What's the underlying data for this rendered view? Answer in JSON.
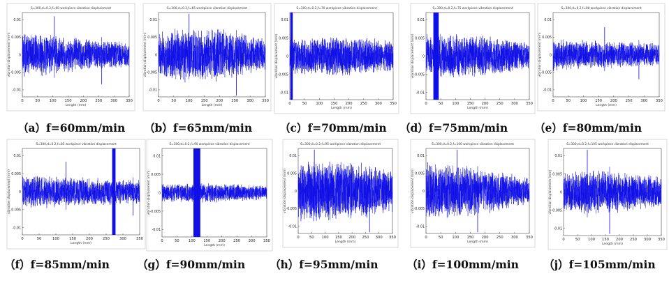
{
  "colors": {
    "signal": "#1010e6",
    "axis": "#4a4a4a",
    "frame": "#bdbdbd",
    "text": "#111111"
  },
  "chart_data": [
    {
      "type": "line",
      "title": "S=300,d=0.2,f=60 workpiece vibration displacement",
      "caption": "（a）f=60mm/min",
      "xlabel": "Length (mm)",
      "ylabel": "vibration displacement (mm)",
      "xlim": [
        0,
        350
      ],
      "ylim": [
        -0.012,
        0.012
      ],
      "x_ticks": [
        "0",
        "50",
        "100",
        "150",
        "200",
        "250",
        "300",
        "350"
      ],
      "y_ticks": [
        "0.01",
        "0.005",
        "0",
        "-0.005",
        "-0.01"
      ],
      "series": [
        {
          "envelope_x": [
            0,
            50,
            100,
            150,
            200,
            250,
            300,
            350
          ],
          "envelope_amplitude": [
            0.0068,
            0.0064,
            0.0058,
            0.0054,
            0.0049,
            0.0045,
            0.0041,
            0.0038
          ],
          "spike_x": [
            105,
            260
          ]
        }
      ]
    },
    {
      "type": "line",
      "title": "S=300,d=0.2,f=65 workpiece vibration displacement",
      "caption": "（b）f=65mm/min",
      "xlabel": "Length (mm)",
      "ylabel": "vibration displacement (mm)",
      "xlim": [
        0,
        350
      ],
      "ylim": [
        -0.012,
        0.012
      ],
      "x_ticks": [
        "0",
        "50",
        "100",
        "150",
        "200",
        "250",
        "300",
        "350"
      ],
      "y_ticks": [
        "0.01",
        "0.005",
        "0",
        "-0.005",
        "-0.01"
      ],
      "series": [
        {
          "envelope_x": [
            0,
            50,
            100,
            150,
            200,
            250,
            300,
            350
          ],
          "envelope_amplitude": [
            0.0066,
            0.0075,
            0.0082,
            0.0085,
            0.0078,
            0.0068,
            0.0058,
            0.0048
          ],
          "spike_x": [
            100,
            255
          ]
        }
      ]
    },
    {
      "type": "line",
      "title": "S=300,d=0.2,f=70 workpiece vibration displacement",
      "caption": "（c）f=70mm/min",
      "xlabel": "Length (mm)",
      "ylabel": "vibration displacement (mm)",
      "xlim": [
        0,
        350
      ],
      "ylim": [
        -0.012,
        0.012
      ],
      "x_ticks": [
        "0",
        "50",
        "100",
        "150",
        "200",
        "250",
        "300",
        "350"
      ],
      "y_ticks": [
        "0.01",
        "0.005",
        "0",
        "-0.005",
        "-0.01"
      ],
      "series": [
        {
          "envelope_x": [
            0,
            50,
            100,
            150,
            200,
            250,
            300,
            350
          ],
          "envelope_amplitude": [
            0.0052,
            0.0052,
            0.0055,
            0.0057,
            0.0057,
            0.0052,
            0.0048,
            0.0045
          ],
          "saturated_band": [
            2,
            10
          ],
          "spike_x": []
        }
      ]
    },
    {
      "type": "line",
      "title": "S=300,d=0.2,f=75 workpiece vibration displacement",
      "caption": "（d）f=75mm/min",
      "xlabel": "Length (mm)",
      "ylabel": "vibration displacement (mm)",
      "xlim": [
        0,
        350
      ],
      "ylim": [
        -0.012,
        0.012
      ],
      "x_ticks": [
        "0",
        "50",
        "100",
        "150",
        "200",
        "250",
        "300",
        "350"
      ],
      "y_ticks": [
        "0.01",
        "0.005",
        "0",
        "-0.005",
        "-0.01"
      ],
      "series": [
        {
          "envelope_x": [
            0,
            50,
            100,
            150,
            200,
            250,
            300,
            350
          ],
          "envelope_amplitude": [
            0.0062,
            0.0064,
            0.0062,
            0.006,
            0.0058,
            0.0052,
            0.0046,
            0.004
          ],
          "saturated_band": [
            25,
            43
          ],
          "spike_x": []
        }
      ]
    },
    {
      "type": "line",
      "title": "S=300,d=0.2,f=80 workpiece vibration displacement",
      "caption": "（e）f=80mm/min",
      "xlabel": "Length (mm)",
      "ylabel": "vibration displacement (mm)",
      "xlim": [
        0,
        350
      ],
      "ylim": [
        -0.012,
        0.012
      ],
      "x_ticks": [
        "0",
        "50",
        "100",
        "150",
        "200",
        "250",
        "300",
        "350"
      ],
      "y_ticks": [
        "0.01",
        "0.005",
        "0",
        "-0.005",
        "-0.01"
      ],
      "series": [
        {
          "envelope_x": [
            0,
            50,
            100,
            150,
            200,
            250,
            300,
            350
          ],
          "envelope_amplitude": [
            0.0048,
            0.0046,
            0.0044,
            0.0042,
            0.004,
            0.0038,
            0.0036,
            0.0034
          ],
          "spike_x": [
            170,
            283
          ]
        }
      ]
    },
    {
      "type": "line",
      "title": "S=300,d=0.2,f=85 workpiece vibration displacement",
      "caption": "（f）f=85mm/min",
      "xlabel": "Length (mm)",
      "ylabel": "vibration displacement (mm)",
      "xlim": [
        0,
        350
      ],
      "ylim": [
        -0.012,
        0.012
      ],
      "x_ticks": [
        "0",
        "50",
        "100",
        "150",
        "200",
        "250",
        "300",
        "350"
      ],
      "y_ticks": [
        "0.01",
        "0.005",
        "0",
        "-0.005",
        "-0.01"
      ],
      "series": [
        {
          "envelope_x": [
            0,
            50,
            100,
            150,
            200,
            250,
            300,
            350
          ],
          "envelope_amplitude": [
            0.005,
            0.0048,
            0.0045,
            0.0043,
            0.004,
            0.0038,
            0.0036,
            0.0034
          ],
          "saturated_band": [
            268,
            278
          ],
          "spike_x": [
            130,
            330
          ]
        }
      ]
    },
    {
      "type": "line",
      "title": "S=300,d=0.2,f=90 workpiece vibration displacement",
      "caption": "（g）f=90mm/min",
      "xlabel": "Length (mm)",
      "ylabel": "vibration displacement (mm)",
      "xlim": [
        0,
        350
      ],
      "ylim": [
        -0.012,
        0.012
      ],
      "x_ticks": [
        "0",
        "50",
        "100",
        "150",
        "200",
        "250",
        "300",
        "350"
      ],
      "y_ticks": [
        "0.01",
        "0.005",
        "0",
        "-0.005",
        "-0.01"
      ],
      "series": [
        {
          "envelope_x": [
            0,
            50,
            100,
            150,
            200,
            250,
            300,
            350
          ],
          "envelope_amplitude": [
            0.0026,
            0.0026,
            0.0028,
            0.0028,
            0.0026,
            0.0024,
            0.0022,
            0.002
          ],
          "saturated_band": [
            105,
            128
          ],
          "spike_x": []
        }
      ]
    },
    {
      "type": "line",
      "title": "S=300,d=0.2,f=95 workpiece vibration displacement",
      "caption": "（h）f=95mm/min",
      "xlabel": "Length (mm)",
      "ylabel": "vibration displacement (mm)",
      "xlim": [
        0,
        350
      ],
      "ylim": [
        -0.012,
        0.012
      ],
      "x_ticks": [
        "0",
        "50",
        "100",
        "150",
        "200",
        "250",
        "300",
        "350"
      ],
      "y_ticks": [
        "0.01",
        "0.005",
        "0",
        "-0.005",
        "-0.01"
      ],
      "series": [
        {
          "envelope_x": [
            0,
            50,
            100,
            150,
            200,
            250,
            300,
            350
          ],
          "envelope_amplitude": [
            0.0092,
            0.0092,
            0.009,
            0.0088,
            0.0085,
            0.0078,
            0.007,
            0.0062
          ],
          "spike_x": [
            60,
            265
          ]
        }
      ]
    },
    {
      "type": "line",
      "title": "S=300,d=0.2,f=100 workpiece vibration displacement",
      "caption": "（i）f=100mm/min",
      "xlabel": "Length (mm)",
      "ylabel": "vibration displacement (mm)",
      "xlim": [
        0,
        350
      ],
      "ylim": [
        -0.012,
        0.012
      ],
      "x_ticks": [
        "0",
        "50",
        "100",
        "150",
        "200",
        "250",
        "300",
        "350"
      ],
      "y_ticks": [
        "0.01",
        "0.005",
        "0",
        "-0.005",
        "-0.01"
      ],
      "series": [
        {
          "envelope_x": [
            0,
            50,
            100,
            150,
            200,
            250,
            300,
            350
          ],
          "envelope_amplitude": [
            0.0085,
            0.0085,
            0.008,
            0.0075,
            0.0068,
            0.0058,
            0.0048,
            0.004
          ],
          "spike_x": [
            105,
            175
          ]
        }
      ]
    },
    {
      "type": "line",
      "title": "S=300,d=0.2,f=105 workpiece vibration displacement",
      "caption": "（j）f=105mm/min",
      "xlabel": "Length (mm)",
      "ylabel": "vibration displacement (mm)",
      "xlim": [
        0,
        350
      ],
      "ylim": [
        -0.012,
        0.012
      ],
      "x_ticks": [
        "0",
        "50",
        "100",
        "150",
        "200",
        "250",
        "300",
        "350"
      ],
      "y_ticks": [
        "0.01",
        "0.005",
        "0",
        "-0.005",
        "-0.01"
      ],
      "series": [
        {
          "envelope_x": [
            0,
            50,
            100,
            150,
            200,
            250,
            300,
            350
          ],
          "envelope_amplitude": [
            0.0058,
            0.006,
            0.0062,
            0.0062,
            0.0058,
            0.0054,
            0.005,
            0.0046
          ],
          "spike_x": [
            85,
            165
          ]
        }
      ]
    }
  ]
}
